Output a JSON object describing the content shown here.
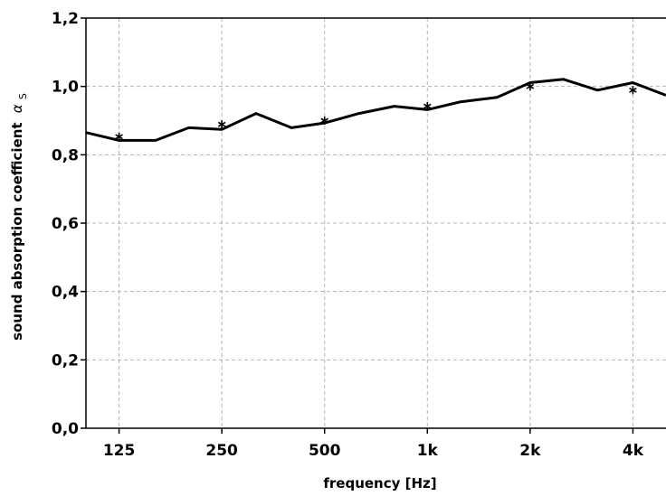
{
  "chart_data": {
    "type": "line",
    "xlabel": "frequency [Hz]",
    "ylabel": "sound absorption coefficient",
    "ylabel_symbol": "α",
    "ylabel_subscript": "S",
    "x_scale": "log",
    "xlim": [
      100,
      5000
    ],
    "ylim": [
      0,
      1.2
    ],
    "grid": true,
    "x_ticks": [
      {
        "value": 125,
        "label": "125"
      },
      {
        "value": 250,
        "label": "250"
      },
      {
        "value": 500,
        "label": "500"
      },
      {
        "value": 1000,
        "label": "1k"
      },
      {
        "value": 2000,
        "label": "2k"
      },
      {
        "value": 4000,
        "label": "4k"
      }
    ],
    "y_ticks": [
      {
        "value": 0,
        "label": "0,0"
      },
      {
        "value": 0.2,
        "label": "0,2"
      },
      {
        "value": 0.4,
        "label": "0,4"
      },
      {
        "value": 0.6,
        "label": "0,6"
      },
      {
        "value": 0.8,
        "label": "0,8"
      },
      {
        "value": 1.0,
        "label": "1,0"
      },
      {
        "value": 1.2,
        "label": "1,2"
      }
    ],
    "series": [
      {
        "style": "line",
        "color": "#000000",
        "x": [
          100,
          125,
          160,
          200,
          250,
          315,
          400,
          500,
          630,
          800,
          1000,
          1250,
          1600,
          2000,
          2500,
          3150,
          4000,
          5000
        ],
        "y": [
          0.865,
          0.842,
          0.842,
          0.879,
          0.874,
          0.921,
          0.879,
          0.893,
          0.921,
          0.942,
          0.932,
          0.955,
          0.968,
          1.011,
          1.021,
          0.989,
          1.011,
          0.974
        ]
      },
      {
        "style": "markers",
        "marker": "asterisk",
        "color": "#000000",
        "x": [
          125,
          250,
          500,
          1000,
          2000,
          4000
        ],
        "y": [
          0.853,
          0.889,
          0.9,
          0.942,
          1.0,
          0.989
        ]
      }
    ]
  }
}
